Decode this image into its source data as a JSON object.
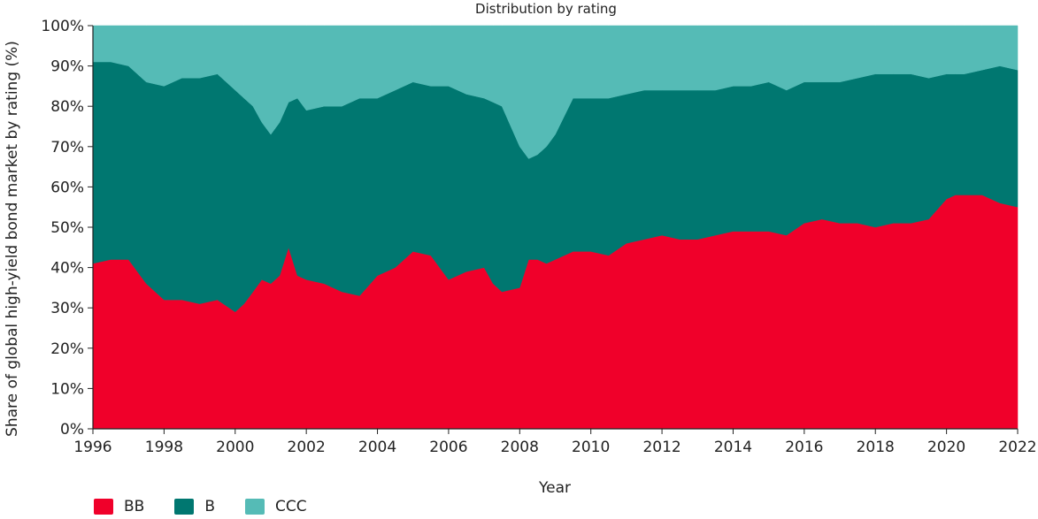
{
  "chart_data": {
    "type": "area",
    "stacked": true,
    "normalized": true,
    "title": "Distribution by rating",
    "xlabel": "Year",
    "ylabel": "Share of global high-yield bond market by rating (%)",
    "xlim": [
      1996,
      2022
    ],
    "ylim": [
      0,
      100
    ],
    "xticks": [
      "1996",
      "1998",
      "2000",
      "2002",
      "2004",
      "2006",
      "2008",
      "2010",
      "2012",
      "2014",
      "2016",
      "2018",
      "2020",
      "2022"
    ],
    "yticks": [
      "0%",
      "10%",
      "20%",
      "30%",
      "40%",
      "50%",
      "60%",
      "70%",
      "80%",
      "90%",
      "100%"
    ],
    "x": [
      1996,
      1996.5,
      1997,
      1997.5,
      1998,
      1998.5,
      1999,
      1999.5,
      2000,
      2000.25,
      2000.5,
      2000.75,
      2001,
      2001.25,
      2001.5,
      2001.75,
      2002,
      2002.5,
      2003,
      2003.5,
      2004,
      2004.5,
      2005,
      2005.5,
      2006,
      2006.5,
      2007,
      2007.25,
      2007.5,
      2008,
      2008.25,
      2008.5,
      2008.75,
      2009,
      2009.5,
      2010,
      2010.5,
      2011,
      2011.5,
      2012,
      2012.5,
      2013,
      2013.5,
      2014,
      2014.5,
      2015,
      2015.5,
      2016,
      2016.5,
      2017,
      2017.5,
      2018,
      2018.5,
      2019,
      2019.5,
      2020,
      2020.25,
      2020.5,
      2021,
      2021.5,
      2022
    ],
    "series": [
      {
        "name": "BB",
        "color": "#f0002a",
        "values": [
          41,
          42,
          42,
          36,
          32,
          32,
          31,
          32,
          29,
          31,
          34,
          37,
          36,
          38,
          45,
          38,
          37,
          36,
          34,
          33,
          38,
          40,
          44,
          43,
          37,
          39,
          40,
          36,
          34,
          35,
          42,
          42,
          41,
          42,
          44,
          44,
          43,
          46,
          47,
          48,
          47,
          47,
          48,
          49,
          49,
          49,
          48,
          51,
          52,
          51,
          51,
          50,
          51,
          51,
          52,
          57,
          58,
          58,
          58,
          56,
          55
        ]
      },
      {
        "name": "B",
        "color": "#007770",
        "values": [
          50,
          49,
          48,
          50,
          53,
          55,
          56,
          56,
          55,
          51,
          46,
          39,
          37,
          38,
          36,
          44,
          42,
          44,
          46,
          49,
          44,
          44,
          42,
          42,
          48,
          44,
          42,
          45,
          46,
          35,
          25,
          26,
          29,
          31,
          38,
          38,
          39,
          37,
          37,
          36,
          37,
          37,
          36,
          36,
          36,
          37,
          36,
          35,
          34,
          35,
          36,
          38,
          37,
          37,
          35,
          31,
          30,
          30,
          31,
          34,
          34
        ]
      },
      {
        "name": "CCC",
        "color": "#55bbb6",
        "values": [
          9,
          9,
          10,
          14,
          15,
          13,
          13,
          12,
          16,
          18,
          20,
          24,
          27,
          24,
          19,
          18,
          21,
          20,
          20,
          18,
          18,
          16,
          14,
          15,
          15,
          17,
          18,
          19,
          20,
          30,
          33,
          32,
          30,
          27,
          18,
          18,
          18,
          17,
          16,
          16,
          16,
          16,
          16,
          15,
          15,
          14,
          16,
          14,
          14,
          14,
          13,
          12,
          12,
          12,
          13,
          12,
          12,
          12,
          11,
          10,
          11
        ]
      }
    ],
    "legend_position": "bottom-left",
    "grid": false
  }
}
